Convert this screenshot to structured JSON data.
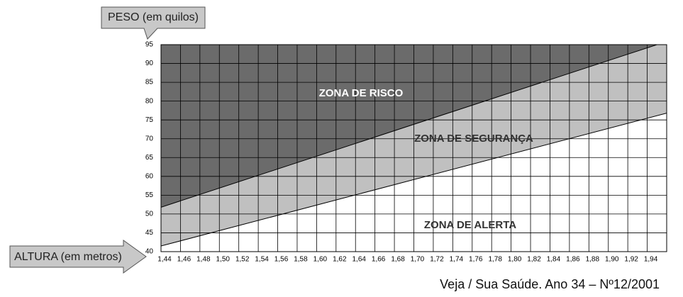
{
  "chart_data": {
    "type": "area",
    "y_label": "PESO (em quilos)",
    "x_label": "ALTURA (em metros)",
    "source": "Veja / Sua Saúde. Ano 34 – Nº12/2001",
    "xlim": [
      1.44,
      1.96
    ],
    "ylim": [
      40,
      95
    ],
    "xticks": [
      {
        "value": 1.44,
        "label": "1,44"
      },
      {
        "value": 1.46,
        "label": "1,46"
      },
      {
        "value": 1.48,
        "label": "1,48"
      },
      {
        "value": 1.5,
        "label": "1,50"
      },
      {
        "value": 1.52,
        "label": "1,52"
      },
      {
        "value": 1.54,
        "label": "1,54"
      },
      {
        "value": 1.56,
        "label": "1,56"
      },
      {
        "value": 1.58,
        "label": "1,58"
      },
      {
        "value": 1.6,
        "label": "1,60"
      },
      {
        "value": 1.62,
        "label": "1,62"
      },
      {
        "value": 1.64,
        "label": "1,64"
      },
      {
        "value": 1.66,
        "label": "1,66"
      },
      {
        "value": 1.68,
        "label": "1,68"
      },
      {
        "value": 1.7,
        "label": "1,70"
      },
      {
        "value": 1.72,
        "label": "1,72"
      },
      {
        "value": 1.74,
        "label": "1,74"
      },
      {
        "value": 1.76,
        "label": "1,76"
      },
      {
        "value": 1.78,
        "label": "1,78"
      },
      {
        "value": 1.8,
        "label": "1,80"
      },
      {
        "value": 1.82,
        "label": "1,82"
      },
      {
        "value": 1.84,
        "label": "1,84"
      },
      {
        "value": 1.86,
        "label": "1,86"
      },
      {
        "value": 1.88,
        "label": "1,88"
      },
      {
        "value": 1.9,
        "label": "1,90"
      },
      {
        "value": 1.92,
        "label": "1,92"
      },
      {
        "value": 1.94,
        "label": "1,94"
      }
    ],
    "yticks": [
      40,
      45,
      50,
      55,
      60,
      65,
      70,
      75,
      80,
      85,
      90,
      95
    ],
    "grid": true,
    "series": [
      {
        "name": "ZONA DE RISCO",
        "color": "#6b6b6b",
        "x": [
          1.44,
          1.95
        ],
        "values": [
          51.8,
          95
        ]
      },
      {
        "name": "ZONA DE SEGURANÇA",
        "color": "#c0c0c0",
        "x": [
          1.44,
          1.96
        ],
        "values": [
          41.5,
          76.8
        ]
      }
    ],
    "annotations": [
      {
        "text": "ZONA DE ALERTA"
      }
    ]
  }
}
